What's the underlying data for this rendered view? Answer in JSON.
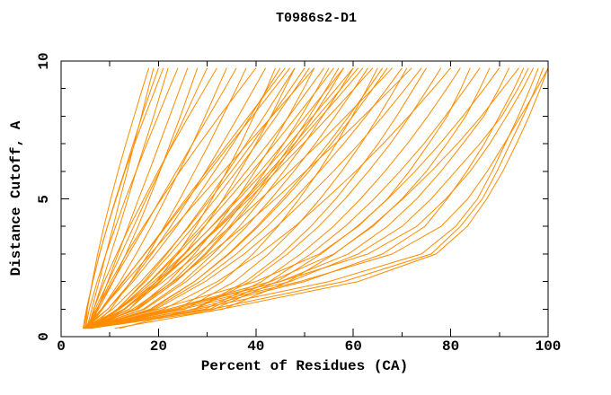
{
  "chart_data": {
    "type": "line",
    "title": "T0986s2-D1",
    "xlabel": "Percent of Residues (CA)",
    "ylabel": "Distance Cutoff, A",
    "xlim": [
      0,
      100
    ],
    "ylim": [
      0,
      10
    ],
    "grid": false,
    "legend": "none",
    "frame": "full-box-ticks-inward",
    "colors": {
      "curve": "#ff8c00",
      "axis": "#000000",
      "background": "#ffffff"
    },
    "x_axis": {
      "ticks": [
        0,
        20,
        40,
        60,
        80,
        100
      ],
      "tick_labels": [
        "0",
        "20",
        "40",
        "60",
        "80",
        "100"
      ],
      "minor_ticks": [
        10,
        30,
        50,
        70,
        90
      ]
    },
    "y_axis": {
      "ticks": [
        0,
        5,
        10
      ],
      "tick_labels": [
        "0",
        "5",
        "10"
      ],
      "minor_ticks": [
        1,
        2,
        3,
        4,
        6,
        7,
        8,
        9
      ]
    },
    "cutoffs": [
      0.3,
      1,
      2,
      3,
      4,
      5,
      6,
      7,
      8,
      9,
      9.75
    ],
    "series": [
      {
        "percents": [
          5,
          5.4,
          6.4,
          7.5,
          8.8,
          10.2,
          11.7,
          13.3,
          15,
          16.7,
          18
        ]
      },
      {
        "percents": [
          4.5,
          5.2,
          6.5,
          7.9,
          9.5,
          11.2,
          13,
          14.8,
          16.6,
          18.5,
          20
        ]
      },
      {
        "percents": [
          5.5,
          6.7,
          8.5,
          10.2,
          12,
          13.7,
          15.4,
          17.2,
          19,
          20.7,
          22
        ]
      },
      {
        "percents": [
          5,
          5.8,
          7.4,
          9.2,
          11.2,
          13.2,
          15.4,
          17.6,
          19.9,
          22.2,
          24
        ]
      },
      {
        "percents": [
          6,
          7.5,
          9.6,
          11.7,
          13.8,
          15.9,
          18.1,
          20.2,
          22.3,
          24.4,
          26
        ]
      },
      {
        "percents": [
          4.8,
          7.7,
          10.7,
          13.3,
          15.8,
          18.1,
          20.3,
          22.4,
          24.5,
          26.5,
          28
        ]
      },
      {
        "percents": [
          5.2,
          7,
          9.7,
          12.3,
          14.9,
          17.5,
          20.2,
          22.8,
          25.4,
          28,
          30
        ]
      },
      {
        "percents": [
          5.5,
          6.7,
          8.9,
          11.4,
          14.1,
          17,
          19.9,
          23,
          26.2,
          29.5,
          32
        ]
      },
      {
        "percents": [
          4.6,
          8.3,
          12.1,
          15.4,
          18.5,
          21.4,
          24.2,
          27,
          29.6,
          32.1,
          34
        ]
      },
      {
        "percents": [
          5,
          7.3,
          10.6,
          13.9,
          17.2,
          20.4,
          23.7,
          27,
          30.3,
          33.6,
          36
        ]
      },
      {
        "percents": [
          6.2,
          10.2,
          14.3,
          17.9,
          21.2,
          24.4,
          27.4,
          30.4,
          33.2,
          36,
          38
        ]
      },
      {
        "percents": [
          5.8,
          7.3,
          10.2,
          13.4,
          16.9,
          20.6,
          24.4,
          28.4,
          32.5,
          36.8,
          40
        ]
      },
      {
        "percents": [
          5.3,
          6.3,
          7.8,
          9.2,
          10.7,
          12.1,
          13.6,
          15,
          16.5,
          17.9,
          19
        ]
      },
      {
        "percents": [
          4.7,
          5.3,
          6.5,
          7.9,
          9.5,
          11.3,
          13.1,
          15.1,
          17.2,
          19.4,
          21
        ]
      },
      {
        "percents": [
          5,
          9.6,
          14.4,
          18.6,
          22.5,
          26.2,
          29.7,
          33.1,
          36.4,
          39.6,
          42
        ]
      },
      {
        "percents": [
          6,
          14,
          19.6,
          23.9,
          27.7,
          31,
          34,
          36.9,
          39.6,
          42.2,
          44
        ]
      },
      {
        "percents": [
          4.5,
          9.6,
          14.8,
          19.4,
          23.7,
          27.7,
          31.5,
          35.3,
          38.9,
          42.4,
          45
        ]
      },
      {
        "percents": [
          5.5,
          8.5,
          12.8,
          17.1,
          21.4,
          25.6,
          29.9,
          34.2,
          38.5,
          42.8,
          46
        ]
      },
      {
        "percents": [
          5,
          14,
          20.4,
          25.3,
          29.5,
          33.3,
          36.7,
          40,
          43.1,
          45.9,
          48
        ]
      },
      {
        "percents": [
          6.5,
          11.7,
          17,
          21.7,
          26.1,
          30.2,
          34.2,
          38,
          41.7,
          45.3,
          48
        ]
      },
      {
        "percents": [
          5,
          10.6,
          16.4,
          21.5,
          26.3,
          30.7,
          35,
          39.2,
          43.2,
          47.1,
          50
        ]
      },
      {
        "percents": [
          5.5,
          15.3,
          22.1,
          27.4,
          32,
          36.1,
          39.8,
          43.4,
          46.7,
          49.8,
          52
        ]
      },
      {
        "percents": [
          4.8,
          8.3,
          13.3,
          18.3,
          23.3,
          28.3,
          33.3,
          38.3,
          43.3,
          48.3,
          52
        ]
      },
      {
        "percents": [
          6,
          12,
          18.2,
          23.6,
          28.7,
          33.5,
          38,
          42.5,
          46.8,
          50.9,
          54
        ]
      },
      {
        "percents": [
          5,
          15.5,
          22.9,
          28.6,
          33.5,
          37.9,
          41.9,
          45.7,
          49.3,
          52.6,
          55
        ]
      },
      {
        "percents": [
          5.5,
          11.8,
          18.3,
          24,
          29.4,
          34.4,
          39.2,
          43.9,
          48.4,
          52.8,
          56
        ]
      },
      {
        "percents": [
          4.5,
          15.7,
          23.6,
          29.8,
          35,
          39.7,
          44,
          48,
          51.8,
          55.4,
          58
        ]
      },
      {
        "percents": [
          6.5,
          12.9,
          19.6,
          25.4,
          30.9,
          36,
          40.9,
          45.6,
          50.2,
          54.7,
          58
        ]
      },
      {
        "percents": [
          5,
          11.9,
          19,
          25.2,
          31,
          36.5,
          41.7,
          46.8,
          51.7,
          56.5,
          60
        ]
      },
      {
        "percents": [
          5.5,
          16.9,
          25,
          31.2,
          36.6,
          41.3,
          45.7,
          49.9,
          53.7,
          57.4,
          60
        ]
      },
      {
        "percents": [
          6,
          13,
          20.2,
          26.6,
          32.5,
          38,
          43.4,
          48.6,
          53.5,
          58.4,
          62
        ]
      },
      {
        "percents": [
          5,
          17.2,
          25.7,
          32.4,
          38.1,
          43.1,
          47.8,
          52.2,
          56.3,
          60.2,
          63
        ]
      },
      {
        "percents": [
          4.6,
          12,
          19.7,
          26.4,
          32.7,
          38.6,
          44.2,
          49.7,
          55,
          60.2,
          64
        ]
      },
      {
        "percents": [
          5.5,
          24,
          33.1,
          39.4,
          44.5,
          48.9,
          52.9,
          56.5,
          59.8,
          62.8,
          65
        ]
      },
      {
        "percents": [
          6,
          18.6,
          27.4,
          34.3,
          40.2,
          45.4,
          50.3,
          54.8,
          59.1,
          63.1,
          66
        ]
      },
      {
        "percents": [
          5,
          12.9,
          21,
          28.1,
          34.8,
          41,
          47,
          52.9,
          58.5,
          64,
          68
        ]
      },
      {
        "percents": [
          5.5,
          19,
          28.5,
          36,
          42.3,
          47.9,
          53.1,
          58,
          62.6,
          66.9,
          70
        ]
      },
      {
        "percents": [
          6.5,
          14.7,
          23.1,
          30.5,
          37.5,
          44,
          50.2,
          56.3,
          62.1,
          67.8,
          72
        ]
      },
      {
        "percents": [
          5,
          19.5,
          29.6,
          37.6,
          44.3,
          50.3,
          55.9,
          61.2,
          66.1,
          70.7,
          74
        ]
      },
      {
        "percents": [
          6,
          27.4,
          37.9,
          45.3,
          51.3,
          56.4,
          60.9,
          65.1,
          68.9,
          72.4,
          75
        ]
      },
      {
        "percents": [
          5.2,
          8.3,
          12.7,
          17.2,
          21.6,
          26,
          30.4,
          34.8,
          39.3,
          43.7,
          47
        ]
      },
      {
        "percents": [
          5.8,
          11.5,
          17.3,
          22.4,
          27.2,
          31.7,
          36,
          40.2,
          44.2,
          48.1,
          51
        ]
      },
      {
        "percents": [
          4.9,
          15.8,
          23.5,
          29.5,
          34.6,
          39.1,
          43.3,
          47.3,
          51,
          54.5,
          57
        ]
      },
      {
        "percents": [
          6.3,
          13.1,
          20.2,
          26.4,
          32.2,
          37.6,
          42.8,
          47.9,
          52.7,
          57.5,
          61
        ]
      },
      {
        "percents": [
          5.4,
          18.3,
          27.4,
          34.5,
          40.5,
          45.9,
          50.9,
          55.5,
          59.9,
          64,
          67
        ]
      },
      {
        "percents": [
          5.1,
          25.5,
          35.6,
          42.6,
          48.3,
          53.2,
          57.6,
          61.6,
          65.2,
          68.6,
          71
        ]
      },
      {
        "percents": [
          5,
          27.6,
          38.8,
          46.5,
          52.9,
          58.3,
          63.1,
          67.6,
          71.6,
          75.3,
          78
        ]
      },
      {
        "percents": [
          5.5,
          21.1,
          32.1,
          40.7,
          48,
          54.4,
          60.5,
          66.1,
          71.4,
          76.4,
          80
        ]
      },
      {
        "percents": [
          6,
          29.6,
          41.2,
          49.2,
          55.9,
          61.5,
          66.5,
          71.1,
          75.3,
          79.2,
          82
        ]
      },
      {
        "percents": [
          5,
          20,
          40,
          53,
          61,
          67,
          71.5,
          75.5,
          79.3,
          82.1,
          84
        ]
      },
      {
        "percents": [
          5.5,
          30.5,
          42.8,
          51.3,
          58.3,
          64.3,
          69.6,
          74.5,
          78.9,
          83,
          86
        ]
      },
      {
        "percents": [
          6,
          22,
          43,
          56,
          64,
          70,
          75,
          79.2,
          83.1,
          86,
          88
        ]
      },
      {
        "percents": [
          5,
          31.4,
          44.4,
          53.4,
          60.8,
          67.1,
          72.7,
          77.8,
          82.5,
          86.9,
          90
        ]
      },
      {
        "percents": [
          5.5,
          23,
          45,
          59,
          67,
          73,
          78,
          82.5,
          86.8,
          89.9,
          92
        ]
      },
      {
        "percents": [
          6,
          33.3,
          46.7,
          56.1,
          63.7,
          70.2,
          76,
          81.4,
          86.3,
          90.7,
          94
        ]
      },
      {
        "percents": [
          5,
          24,
          47,
          61,
          70,
          76,
          81,
          86,
          90.5,
          93.8,
          96
        ]
      },
      {
        "percents": [
          5,
          28,
          55,
          74,
          81,
          85.5,
          88.5,
          91.2,
          93.9,
          96.3,
          98
        ]
      },
      {
        "percents": [
          5.5,
          31,
          58,
          76,
          82,
          86.5,
          89.5,
          92.2,
          94.9,
          97.4,
          99
        ]
      },
      {
        "percents": [
          6,
          25,
          49,
          68,
          78,
          83.5,
          87.5,
          91,
          94.4,
          97.7,
          100
        ]
      },
      {
        "percents": [
          5,
          22,
          45,
          63,
          73,
          79,
          84,
          88,
          91.5,
          94.8,
          97
        ]
      },
      {
        "percents": [
          11,
          33,
          61,
          77,
          83.4,
          87.4,
          90.7,
          93.5,
          96.1,
          98.4,
          100
        ]
      },
      {
        "percents": [
          12,
          27,
          50,
          66,
          74.7,
          79.3,
          83.3,
          86.9,
          90,
          93,
          95
        ]
      }
    ]
  }
}
